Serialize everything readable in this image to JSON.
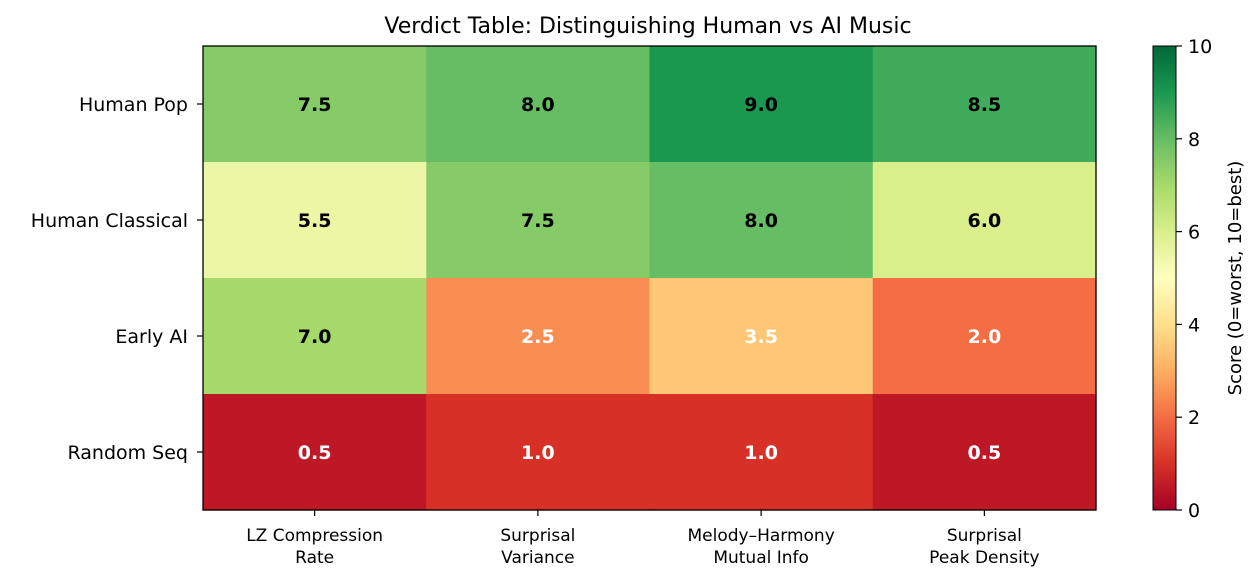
{
  "chart_data": {
    "type": "heatmap",
    "title": "Verdict Table: Distinguishing Human vs AI Music",
    "rows": [
      "Human Pop",
      "Human Classical",
      "Early AI",
      "Random Seq"
    ],
    "columns": [
      [
        "LZ Compression",
        "Rate"
      ],
      [
        "Surprisal",
        "Variance"
      ],
      [
        "Melody–Harmony",
        "Mutual Info"
      ],
      [
        "Surprisal",
        "Peak Density"
      ]
    ],
    "values": [
      [
        7.5,
        8.0,
        9.0,
        8.5
      ],
      [
        5.5,
        7.5,
        8.0,
        6.0
      ],
      [
        7.0,
        2.5,
        3.5,
        2.0
      ],
      [
        0.5,
        1.0,
        1.0,
        0.5
      ]
    ],
    "value_labels": [
      [
        "7.5",
        "8.0",
        "9.0",
        "8.5"
      ],
      [
        "5.5",
        "7.5",
        "8.0",
        "6.0"
      ],
      [
        "7.0",
        "2.5",
        "3.5",
        "2.0"
      ],
      [
        "0.5",
        "1.0",
        "1.0",
        "0.5"
      ]
    ],
    "colormap": "RdYlGn",
    "vmin": 0,
    "vmax": 10,
    "colorbar": {
      "label": "Score (0=worst, 10=best)",
      "ticks": [
        0,
        2,
        4,
        6,
        8,
        10
      ],
      "tick_labels": [
        "0",
        "2",
        "4",
        "6",
        "8",
        "10"
      ]
    },
    "colors": {
      "label_dark": "#000000",
      "label_light": "#ffffff"
    }
  }
}
